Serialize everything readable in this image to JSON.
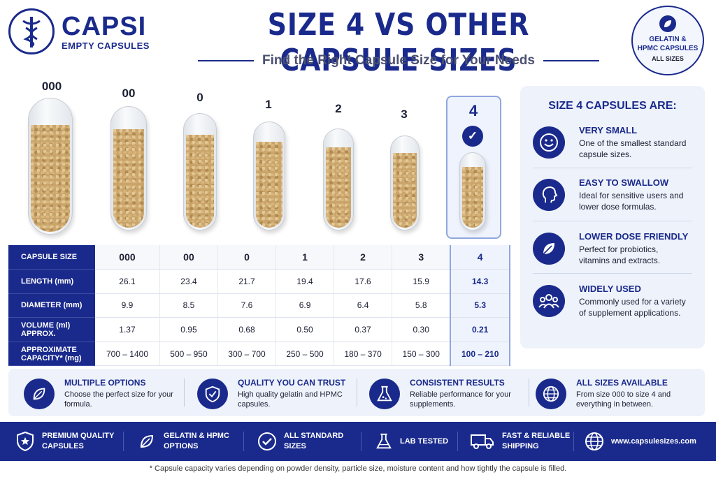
{
  "brand": {
    "name": "CAPSI",
    "tagline": "EMPTY CAPSULES"
  },
  "title": "SIZE 4 VS OTHER CAPSULE SIZES",
  "subtitle": "Find the Right Capsule Size for Your Needs",
  "badge": {
    "line1": "GELATIN &",
    "line2": "HPMC CAPSULES",
    "line3": "ALL SIZES"
  },
  "capsule_labels": [
    "000",
    "00",
    "0",
    "1",
    "2",
    "3",
    "4"
  ],
  "table": {
    "row_headers": [
      "CAPSULE SIZE",
      "LENGTH (mm)",
      "DIAMETER (mm)",
      "VOLUME (ml) APPROX.",
      "APPROXIMATE CAPACITY* (mg)"
    ],
    "sizes": [
      "000",
      "00",
      "0",
      "1",
      "2",
      "3",
      "4"
    ],
    "length": [
      "26.1",
      "23.4",
      "21.7",
      "19.4",
      "17.6",
      "15.9",
      "14.3"
    ],
    "diameter": [
      "9.9",
      "8.5",
      "7.6",
      "6.9",
      "6.4",
      "5.8",
      "5.3"
    ],
    "volume": [
      "1.37",
      "0.95",
      "0.68",
      "0.50",
      "0.37",
      "0.30",
      "0.21"
    ],
    "capacity": [
      "700 – 1400",
      "500 – 950",
      "300 – 700",
      "250 – 500",
      "180 – 370",
      "150 – 300",
      "100 – 210"
    ]
  },
  "side": {
    "title": "SIZE 4 CAPSULES ARE:",
    "features": [
      {
        "title": "VERY SMALL",
        "desc": "One of the smallest standard capsule sizes.",
        "icon": "smile-icon"
      },
      {
        "title": "EASY TO SWALLOW",
        "desc": "Ideal for sensitive users and lower dose formulas.",
        "icon": "head-icon"
      },
      {
        "title": "LOWER DOSE FRIENDLY",
        "desc": "Perfect for probiotics, vitamins and extracts.",
        "icon": "leaf-icon"
      },
      {
        "title": "WIDELY USED",
        "desc": "Commonly used for a variety of supplement applications.",
        "icon": "people-icon"
      }
    ]
  },
  "benefits": [
    {
      "title": "MULTIPLE OPTIONS",
      "desc": "Choose the perfect size for your formula.",
      "icon": "leaf-icon"
    },
    {
      "title": "QUALITY YOU CAN TRUST",
      "desc": "High quality gelatin and HPMC capsules.",
      "icon": "shield-check-icon"
    },
    {
      "title": "CONSISTENT RESULTS",
      "desc": "Reliable performance for your supplements.",
      "icon": "flask-icon"
    },
    {
      "title": "ALL SIZES AVAILABLE",
      "desc": "From size 000 to size 4 and everything in between.",
      "icon": "globe-icon"
    }
  ],
  "footer": {
    "items": [
      {
        "label1": "PREMIUM QUALITY",
        "label2": "CAPSULES",
        "icon": "shield-star-icon"
      },
      {
        "label1": "GELATIN & HPMC",
        "label2": "OPTIONS",
        "icon": "leaf-icon"
      },
      {
        "label1": "ALL STANDARD",
        "label2": "SIZES",
        "icon": "check-circle-icon"
      },
      {
        "label1": "LAB TESTED",
        "label2": "",
        "icon": "flask-icon"
      },
      {
        "label1": "FAST & RELIABLE",
        "label2": "SHIPPING",
        "icon": "truck-icon"
      },
      {
        "label1": "www.capsulesizes.com",
        "label2": "",
        "icon": "globe-icon"
      }
    ]
  },
  "footnote": "* Capsule capacity varies depending on powder density, particle size, moisture content and how tightly the capsule is filled.",
  "colors": {
    "navy": "#1a2a8c",
    "highlight": "#eef3fd",
    "powder": "#c9a46b"
  }
}
